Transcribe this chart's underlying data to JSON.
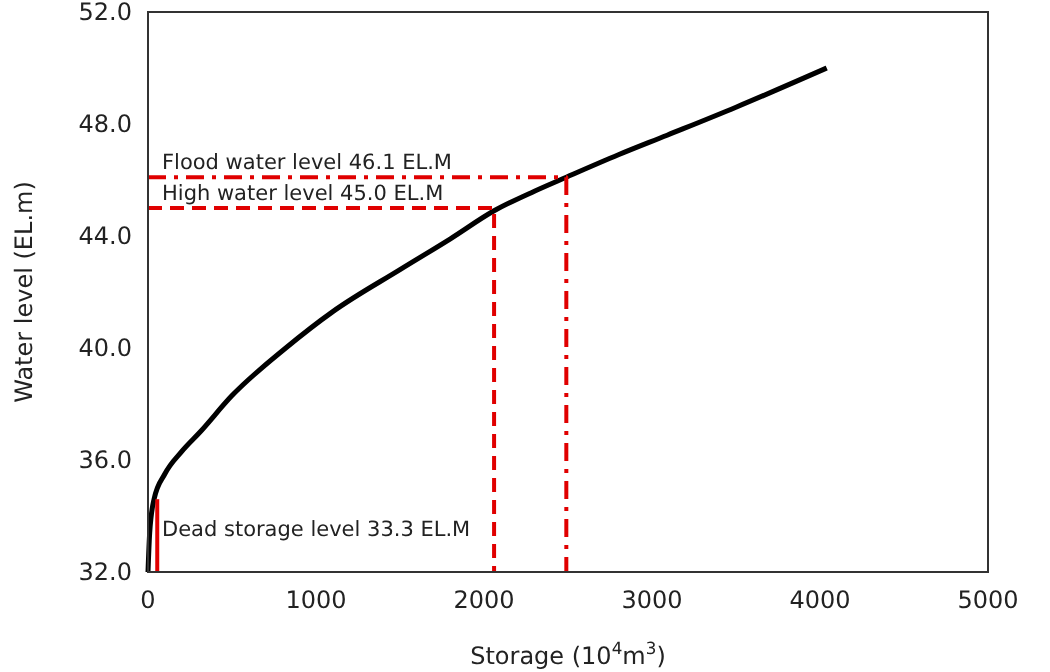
{
  "chart_data": {
    "type": "line",
    "xlabel": "Storage (10$^{4}$m$^{3}$)",
    "ylabel": "Water level (EL.m)",
    "xlim": [
      0,
      5000
    ],
    "xticks": [
      0,
      1000,
      2000,
      3000,
      4000,
      5000
    ],
    "ylim": [
      32,
      52
    ],
    "yticks": [
      {
        "value": 32,
        "label": "32.0"
      },
      {
        "value": 36,
        "label": "36.0"
      },
      {
        "value": 40,
        "label": "40.0"
      },
      {
        "value": 44,
        "label": "44.0"
      },
      {
        "value": 48,
        "label": "48.0"
      },
      {
        "value": 52,
        "label": "52.0"
      }
    ],
    "grid": false,
    "marker": "none",
    "series": [
      {
        "color": "#000000",
        "line_style": "solid",
        "x": [
          0,
          10,
          36,
          100,
          200,
          310,
          500,
          820,
          1100,
          1500,
          1800,
          2060,
          2300,
          2490,
          2800,
          3090,
          3500,
          4040
        ],
        "values": [
          32,
          33.4,
          34.6,
          35.5,
          36.3,
          37.0,
          38.3,
          40.0,
          41.3,
          42.8,
          43.9,
          44.9,
          45.6,
          46.1,
          46.9,
          47.6,
          48.6,
          50.0
        ]
      },
      {
        "color": "#e00000",
        "line_style": "dashed",
        "x": [
          0,
          2060,
          2060
        ],
        "values": [
          45.0,
          45.0,
          32
        ]
      },
      {
        "color": "#e00000",
        "line_style": "dashdot",
        "x": [
          0,
          2490,
          2490
        ],
        "values": [
          46.1,
          46.1,
          32
        ]
      },
      {
        "color": "#e00000",
        "line_style": "solid",
        "x": [
          55,
          55
        ],
        "values": [
          32,
          34.6
        ]
      }
    ],
    "annotations": [
      {
        "text": "Flood water level 46.1 EL.M",
        "y": 46.1
      },
      {
        "text": "High water level 45.0 EL.M",
        "y": 45.0
      },
      "Dead storage level 33.3 EL.M"
    ]
  }
}
